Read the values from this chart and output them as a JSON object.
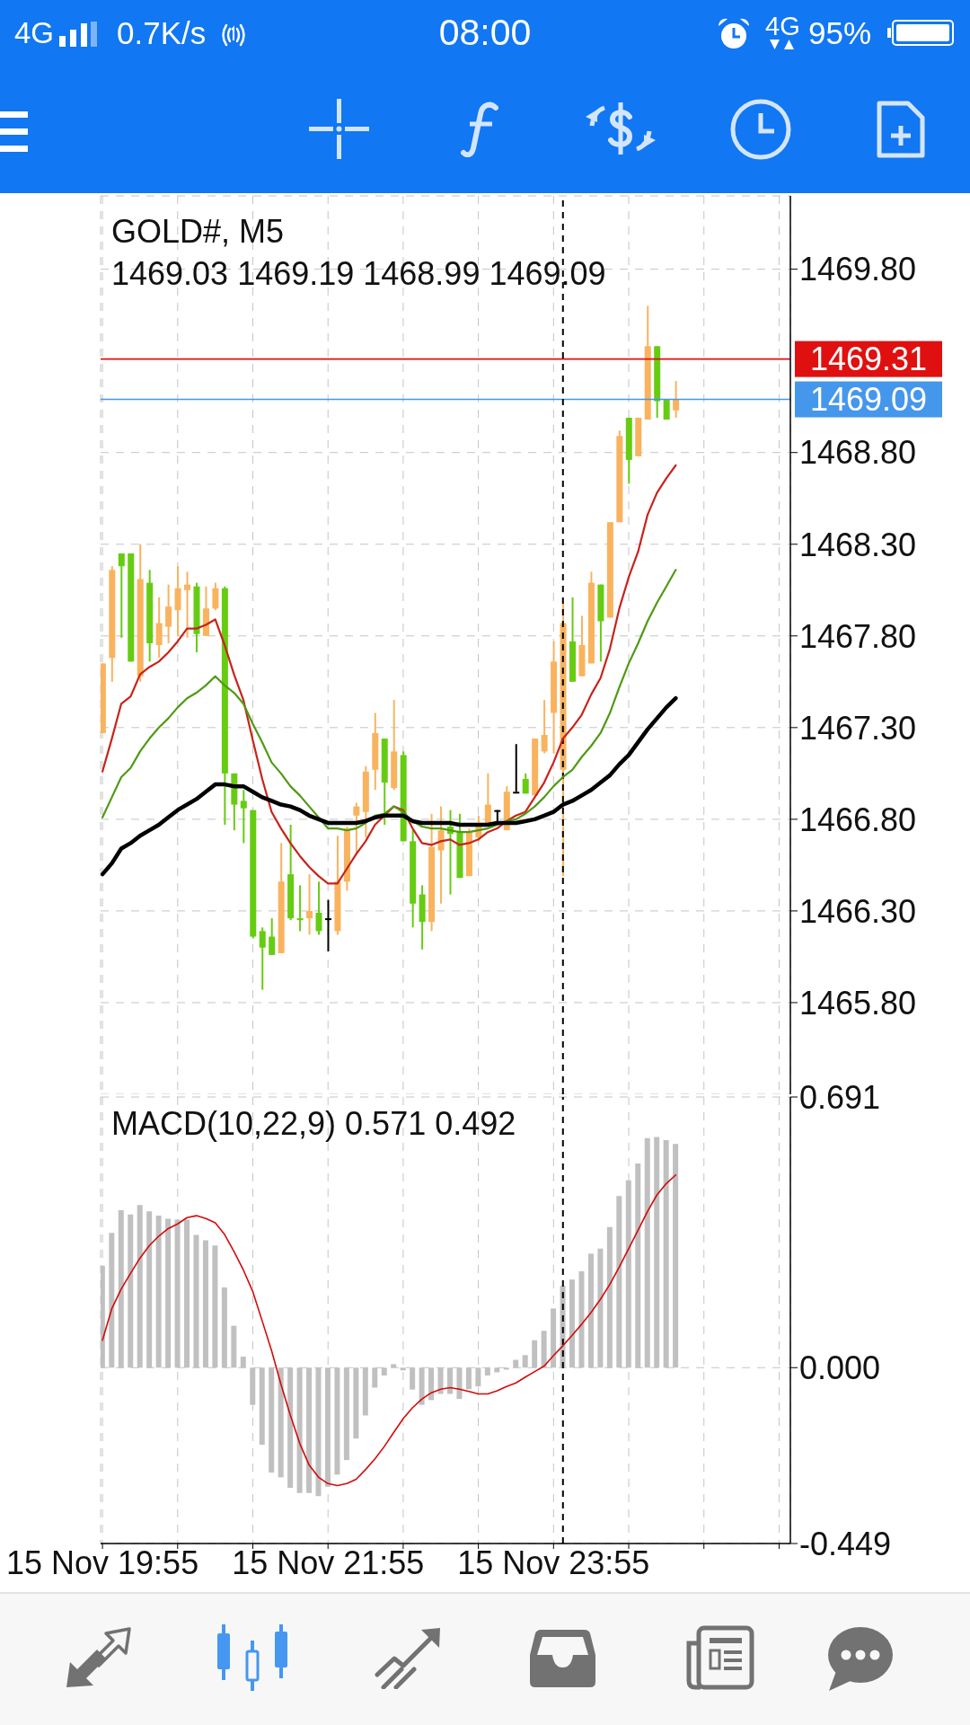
{
  "chart_data": [
    {
      "type": "candlestick",
      "title": "GOLD#, M5",
      "subtitle": "1469.03 1469.19 1468.99 1469.09",
      "annotations": [
        "4G",
        "0.7K/s",
        "08:00",
        "4G",
        "95%"
      ],
      "x": [
        "--11-15T19:55",
        "--11-15T20:00",
        "--11-15T20:05",
        "--11-15T20:10",
        "--11-15T20:15",
        "--11-15T20:20",
        "--11-15T20:25",
        "--11-15T20:30",
        "--11-15T20:35",
        "--11-15T20:40",
        "--11-15T20:45",
        "--11-15T20:50",
        "--11-15T20:55",
        "--11-15T21:00",
        "--11-15T21:05",
        "--11-15T21:10",
        "--11-15T21:15",
        "--11-15T21:20",
        "--11-15T21:25",
        "--11-15T21:30",
        "--11-15T21:35",
        "--11-15T21:40",
        "--11-15T21:45",
        "--11-15T21:50",
        "--11-15T21:55",
        "--11-15T22:00",
        "--11-15T22:05",
        "--11-15T22:10",
        "--11-15T22:15",
        "--11-15T22:20",
        "--11-15T22:25",
        "--11-15T22:30",
        "--11-15T22:35",
        "--11-15T22:40",
        "--11-15T22:45",
        "--11-15T22:50",
        "--11-15T22:55",
        "--11-15T23:00",
        "--11-15T23:05",
        "--11-15T23:10",
        "--11-15T23:15",
        "--11-15T23:20",
        "--11-15T23:25",
        "--11-15T23:30",
        "--11-15T23:35",
        "--11-15T23:40",
        "--11-15T23:45",
        "--11-15T23:50",
        "--11-15T23:55",
        "--11-16T00:00",
        "--11-16T00:05",
        "--11-16T00:10",
        "--11-16T00:15",
        "--11-16T00:20",
        "--11-16T00:25",
        "--11-16T00:30",
        "--11-16T00:35",
        "--11-16T00:40",
        "--11-16T00:45",
        "--11-16T00:50",
        "--11-16T00:55",
        "--11-16T01:00"
      ],
      "ohlc": [
        [
          1467.27,
          1467.65,
          1467.27,
          1467.65
        ],
        [
          1467.68,
          1468.18,
          1467.55,
          1468.16
        ],
        [
          1468.25,
          1468.25,
          1467.79,
          1468.18
        ],
        [
          1468.25,
          1468.25,
          1467.66,
          1467.66
        ],
        [
          1467.58,
          1468.3,
          1467.55,
          1468.11
        ],
        [
          1468.09,
          1468.16,
          1467.66,
          1467.76
        ],
        [
          1467.75,
          1468.01,
          1467.68,
          1467.87
        ],
        [
          1467.85,
          1468.08,
          1467.76,
          1467.96
        ],
        [
          1467.94,
          1468.18,
          1467.8,
          1468.06
        ],
        [
          1468.05,
          1468.15,
          1467.79,
          1468.08
        ],
        [
          1468.07,
          1468.09,
          1467.71,
          1467.81
        ],
        [
          1467.8,
          1468.07,
          1467.8,
          1467.95
        ],
        [
          1467.95,
          1468.09,
          1467.94,
          1468.06
        ],
        [
          1468.06,
          1468.07,
          1466.77,
          1467.05
        ],
        [
          1467.05,
          1467.05,
          1466.74,
          1466.88
        ],
        [
          1466.9,
          1466.96,
          1466.67,
          1466.86
        ],
        [
          1466.85,
          1466.85,
          1466.15,
          1466.16
        ],
        [
          1466.19,
          1466.21,
          1465.87,
          1466.1
        ],
        [
          1466.16,
          1466.26,
          1466.06,
          1466.06
        ],
        [
          1466.07,
          1466.67,
          1466.07,
          1466.46
        ],
        [
          1466.5,
          1466.77,
          1466.25,
          1466.26
        ],
        [
          1466.26,
          1466.44,
          1466.19,
          1466.25
        ],
        [
          1466.26,
          1466.5,
          1466.17,
          1466.3
        ],
        [
          1466.29,
          1466.46,
          1466.17,
          1466.19
        ],
        [
          1466.26,
          1466.36,
          1466.08,
          1466.26
        ],
        [
          1466.19,
          1466.71,
          1466.17,
          1466.46
        ],
        [
          1466.46,
          1466.76,
          1466.41,
          1466.75
        ],
        [
          1466.82,
          1466.89,
          1466.61,
          1466.87
        ],
        [
          1466.84,
          1467.09,
          1466.7,
          1467.06
        ],
        [
          1467.07,
          1467.38,
          1466.96,
          1467.27
        ],
        [
          1467.24,
          1467.24,
          1466.77,
          1467.0
        ],
        [
          1466.97,
          1467.45,
          1466.96,
          1467.17
        ],
        [
          1467.15,
          1467.17,
          1466.68,
          1466.68
        ],
        [
          1466.68,
          1466.74,
          1466.21,
          1466.34
        ],
        [
          1466.39,
          1466.44,
          1466.09,
          1466.24
        ],
        [
          1466.24,
          1466.83,
          1466.19,
          1466.65
        ],
        [
          1466.63,
          1466.87,
          1466.34,
          1466.74
        ],
        [
          1466.76,
          1466.85,
          1466.39,
          1466.72
        ],
        [
          1466.73,
          1466.83,
          1466.48,
          1466.48
        ],
        [
          1466.49,
          1466.75,
          1466.49,
          1466.73
        ],
        [
          1466.7,
          1466.82,
          1466.68,
          1466.76
        ],
        [
          1466.77,
          1467.05,
          1466.77,
          1466.88
        ],
        [
          1466.85,
          1466.85,
          1466.78,
          1466.85
        ],
        [
          1466.74,
          1466.98,
          1466.74,
          1466.95
        ],
        [
          1466.95,
          1467.21,
          1466.95,
          1466.95
        ],
        [
          1467.02,
          1467.05,
          1466.94,
          1466.94
        ],
        [
          1466.93,
          1467.24,
          1466.93,
          1467.24
        ],
        [
          1467.17,
          1467.45,
          1467.16,
          1467.26
        ],
        [
          1467.38,
          1467.77,
          1467.16,
          1467.66
        ],
        [
          1467.07,
          1467.98,
          1466.49,
          1467.87
        ],
        [
          1467.77,
          1468.01,
          1467.55,
          1467.55
        ],
        [
          1467.58,
          1467.91,
          1467.58,
          1467.75
        ],
        [
          1467.65,
          1468.15,
          1467.65,
          1468.09
        ],
        [
          1468.08,
          1468.08,
          1467.66,
          1467.88
        ],
        [
          1467.9,
          1468.42,
          1467.9,
          1468.42
        ],
        [
          1468.42,
          1468.92,
          1468.42,
          1468.89
        ],
        [
          1468.99,
          1468.99,
          1468.63,
          1468.76
        ],
        [
          1468.78,
          1468.99,
          1468.78,
          1468.99
        ],
        [
          1468.98,
          1469.6,
          1468.98,
          1469.38
        ],
        [
          1469.38,
          1469.38,
          1468.99,
          1469.08
        ],
        [
          1469.09,
          1469.09,
          1468.98,
          1468.98
        ],
        [
          1469.03,
          1469.19,
          1468.99,
          1469.09
        ]
      ],
      "colors": [
        "#f9b35e",
        "#f9b35e",
        "#66cc12",
        "#66cc12",
        "#f9b35e",
        "#66cc12",
        "#f9b35e",
        "#f9b35e",
        "#f9b35e",
        "#f9b35e",
        "#66cc12",
        "#f9b35e",
        "#f9b35e",
        "#66cc12",
        "#66cc12",
        "#66cc12",
        "#66cc12",
        "#66cc12",
        "#66cc12",
        "#f9b35e",
        "#66cc12",
        "#66cc12",
        "#f9b35e",
        "#66cc12",
        "#000000",
        "#f9b35e",
        "#f9b35e",
        "#f9b35e",
        "#f9b35e",
        "#f9b35e",
        "#66cc12",
        "#f9b35e",
        "#66cc12",
        "#66cc12",
        "#66cc12",
        "#f9b35e",
        "#f9b35e",
        "#66cc12",
        "#66cc12",
        "#f9b35e",
        "#f9b35e",
        "#f9b35e",
        "#000000",
        "#f9b35e",
        "#000000",
        "#66cc12",
        "#f9b35e",
        "#f9b35e",
        "#f9b35e",
        "#f9b35e",
        "#66cc12",
        "#f9b35e",
        "#f9b35e",
        "#66cc12",
        "#f9b35e",
        "#f9b35e",
        "#66cc12",
        "#f9b35e",
        "#f9b35e",
        "#66cc12",
        "#66cc12",
        "#f9b35e"
      ],
      "series": [
        {
          "type": "line",
          "color": "#c8231b",
          "values": [
            1467.06,
            1467.24,
            1467.43,
            1467.47,
            1467.59,
            1467.63,
            1467.66,
            1467.71,
            1467.77,
            1467.84,
            1467.84,
            1467.86,
            1467.89,
            1467.75,
            1467.59,
            1467.45,
            1467.23,
            1467.02,
            1466.84,
            1466.75,
            1466.67,
            1466.6,
            1466.54,
            1466.49,
            1466.45,
            1466.45,
            1466.53,
            1466.61,
            1466.68,
            1466.77,
            1466.82,
            1466.87,
            1466.85,
            1466.75,
            1466.67,
            1466.66,
            1466.68,
            1466.69,
            1466.66,
            1466.67,
            1466.69,
            1466.73,
            1466.75,
            1466.79,
            1466.82,
            1466.84,
            1466.92,
            1467.0,
            1467.11,
            1467.24,
            1467.3,
            1467.37,
            1467.48,
            1467.57,
            1467.73,
            1467.95,
            1468.12,
            1468.26,
            1468.46,
            1468.58,
            1468.66,
            1468.73
          ]
        },
        {
          "type": "line",
          "color": "#4f9a14",
          "values": [
            1466.81,
            1466.92,
            1467.03,
            1467.08,
            1467.17,
            1467.24,
            1467.3,
            1467.35,
            1467.41,
            1467.46,
            1467.49,
            1467.53,
            1467.58,
            1467.53,
            1467.49,
            1467.43,
            1467.32,
            1467.22,
            1467.11,
            1467.05,
            1466.98,
            1466.93,
            1466.87,
            1466.81,
            1466.75,
            1466.75,
            1466.74,
            1466.75,
            1466.78,
            1466.82,
            1466.83,
            1466.87,
            1466.84,
            1466.79,
            1466.76,
            1466.75,
            1466.75,
            1466.74,
            1466.73,
            1466.73,
            1466.74,
            1466.75,
            1466.77,
            1466.79,
            1466.8,
            1466.83,
            1466.87,
            1466.92,
            1466.98,
            1467.03,
            1467.07,
            1467.14,
            1467.2,
            1467.27,
            1467.38,
            1467.52,
            1467.65,
            1467.76,
            1467.88,
            1467.98,
            1468.07,
            1468.16
          ]
        },
        {
          "type": "line",
          "color": "#000000",
          "values": [
            1466.5,
            1466.56,
            1466.64,
            1466.67,
            1466.71,
            1466.74,
            1466.77,
            1466.81,
            1466.85,
            1466.88,
            1466.91,
            1466.95,
            1466.99,
            1466.99,
            1466.98,
            1466.98,
            1466.95,
            1466.92,
            1466.9,
            1466.88,
            1466.87,
            1466.85,
            1466.82,
            1466.8,
            1466.78,
            1466.78,
            1466.78,
            1466.78,
            1466.79,
            1466.81,
            1466.82,
            1466.82,
            1466.82,
            1466.79,
            1466.78,
            1466.78,
            1466.78,
            1466.78,
            1466.77,
            1466.77,
            1466.77,
            1466.77,
            1466.78,
            1466.78,
            1466.78,
            1466.79,
            1466.8,
            1466.82,
            1466.84,
            1466.88,
            1466.9,
            1466.93,
            1466.96,
            1467.0,
            1467.04,
            1467.1,
            1467.15,
            1467.22,
            1467.29,
            1467.35,
            1467.41,
            1467.46
          ]
        }
      ],
      "xlim": [
        "--11-15T19:54",
        "--11-16T02:01"
      ],
      "xticks": [
        {
          "value": "--11-15T19:55",
          "label": "15 Nov 19:55"
        },
        {
          "value": "--11-15T20:35",
          "label": null
        },
        {
          "value": "--11-15T21:15",
          "label": null
        },
        {
          "value": "--11-15T21:55",
          "label": "15 Nov 21:55"
        },
        {
          "value": "--11-15T22:35",
          "label": null
        },
        {
          "value": "--11-15T23:15",
          "label": null
        },
        {
          "value": "--11-15T23:55",
          "label": "15 Nov 23:55"
        },
        {
          "value": "--11-16T00:35",
          "label": null
        },
        {
          "value": "--11-16T01:15",
          "label": null
        },
        {
          "value": "--11-16T01:55",
          "label": null
        }
      ],
      "ylim": [
        1465.3,
        1470.2
      ],
      "yticks": [
        {
          "value": 1465.8,
          "label": "1465.80"
        },
        {
          "value": 1466.3,
          "label": "1466.30"
        },
        {
          "value": 1466.8,
          "label": "1466.80"
        },
        {
          "value": 1467.3,
          "label": "1467.30"
        },
        {
          "value": 1467.8,
          "label": "1467.80"
        },
        {
          "value": 1468.3,
          "label": "1468.30"
        },
        {
          "value": 1468.8,
          "label": "1468.80"
        },
        {
          "value": 1469.8,
          "label": "1469.80"
        }
      ],
      "grid": true,
      "tick_labels": "y",
      "ref_lines": [
        {
          "axis": "y",
          "value": 1469.31,
          "label": "1469.31",
          "color": "#e01010"
        },
        {
          "axis": "y",
          "value": 1469.09,
          "label": "1469.09",
          "color": "#4597ec"
        },
        {
          "axis": "x",
          "value": "--11-16T00:00",
          "color": "#000000",
          "line_style": "dashed"
        }
      ]
    },
    {
      "type": "bar",
      "title": "MACD(10,22,9) 0.571 0.492",
      "x": [
        "--11-15T19:55",
        "--11-15T20:00",
        "--11-15T20:05",
        "--11-15T20:10",
        "--11-15T20:15",
        "--11-15T20:20",
        "--11-15T20:25",
        "--11-15T20:30",
        "--11-15T20:35",
        "--11-15T20:40",
        "--11-15T20:45",
        "--11-15T20:50",
        "--11-15T20:55",
        "--11-15T21:00",
        "--11-15T21:05",
        "--11-15T21:10",
        "--11-15T21:15",
        "--11-15T21:20",
        "--11-15T21:25",
        "--11-15T21:30",
        "--11-15T21:35",
        "--11-15T21:40",
        "--11-15T21:45",
        "--11-15T21:50",
        "--11-15T21:55",
        "--11-15T22:00",
        "--11-15T22:05",
        "--11-15T22:10",
        "--11-15T22:15",
        "--11-15T22:20",
        "--11-15T22:25",
        "--11-15T22:30",
        "--11-15T22:35",
        "--11-15T22:40",
        "--11-15T22:45",
        "--11-15T22:50",
        "--11-15T22:55",
        "--11-15T23:00",
        "--11-15T23:05",
        "--11-15T23:10",
        "--11-15T23:15",
        "--11-15T23:20",
        "--11-15T23:25",
        "--11-15T23:30",
        "--11-15T23:35",
        "--11-15T23:40",
        "--11-15T23:45",
        "--11-15T23:50",
        "--11-15T23:55",
        "--11-16T00:00",
        "--11-16T00:05",
        "--11-16T00:10",
        "--11-16T00:15",
        "--11-16T00:20",
        "--11-16T00:25",
        "--11-16T00:30",
        "--11-16T00:35",
        "--11-16T00:40",
        "--11-16T00:45",
        "--11-16T00:50",
        "--11-16T00:55",
        "--11-16T01:00"
      ],
      "series": [
        {
          "type": "bar",
          "color": "#c0c0c0",
          "values": [
            0.26,
            0.344,
            0.402,
            0.391,
            0.415,
            0.399,
            0.388,
            0.38,
            0.378,
            0.378,
            0.339,
            0.325,
            0.312,
            0.205,
            0.107,
            0.028,
            -0.095,
            -0.197,
            -0.268,
            -0.28,
            -0.307,
            -0.32,
            -0.32,
            -0.328,
            -0.304,
            -0.273,
            -0.236,
            -0.181,
            -0.122,
            -0.051,
            -0.02,
            0.009,
            -0.007,
            -0.056,
            -0.095,
            -0.083,
            -0.067,
            -0.067,
            -0.08,
            -0.055,
            -0.048,
            -0.02,
            -0.012,
            -0.005,
            0.02,
            0.032,
            0.07,
            0.094,
            0.151,
            0.209,
            0.225,
            0.246,
            0.291,
            0.304,
            0.359,
            0.438,
            0.478,
            0.521,
            0.586,
            0.589,
            0.581,
            0.571
          ]
        },
        {
          "type": "line",
          "color": "#d40a0a",
          "values": [
            0.07,
            0.151,
            0.201,
            0.241,
            0.28,
            0.312,
            0.336,
            0.355,
            0.367,
            0.383,
            0.388,
            0.381,
            0.37,
            0.34,
            0.296,
            0.249,
            0.194,
            0.119,
            0.043,
            -0.043,
            -0.122,
            -0.194,
            -0.249,
            -0.28,
            -0.296,
            -0.301,
            -0.296,
            -0.285,
            -0.26,
            -0.233,
            -0.201,
            -0.165,
            -0.13,
            -0.102,
            -0.08,
            -0.064,
            -0.055,
            -0.051,
            -0.055,
            -0.061,
            -0.067,
            -0.067,
            -0.059,
            -0.048,
            -0.039,
            -0.024,
            -0.01,
            0.004,
            0.031,
            0.056,
            0.083,
            0.111,
            0.141,
            0.175,
            0.213,
            0.257,
            0.304,
            0.351,
            0.399,
            0.441,
            0.47,
            0.492
          ]
        }
      ],
      "xlim": [
        "--11-15T19:54",
        "--11-16T02:01"
      ],
      "xticks": [
        {
          "value": "--11-15T19:55",
          "label": "15 Nov 19:55"
        },
        {
          "value": "--11-15T20:35",
          "label": null
        },
        {
          "value": "--11-15T21:15",
          "label": null
        },
        {
          "value": "--11-15T21:55",
          "label": "15 Nov 21:55"
        },
        {
          "value": "--11-15T22:35",
          "label": null
        },
        {
          "value": "--11-15T23:15",
          "label": null
        },
        {
          "value": "--11-15T23:55",
          "label": "15 Nov 23:55"
        },
        {
          "value": "--11-16T00:35",
          "label": null
        },
        {
          "value": "--11-16T01:15",
          "label": null
        },
        {
          "value": "--11-16T01:55",
          "label": null
        }
      ],
      "ylim": [
        -0.449,
        0.691
      ],
      "yticks": [
        -0.449,
        {
          "value": 0,
          "label": "0.000"
        },
        0.691
      ],
      "grid": true,
      "ref_lines": [
        {
          "axis": "x",
          "value": "--11-16T00:00",
          "color": "#000000",
          "line_style": "dashed"
        }
      ]
    }
  ]
}
